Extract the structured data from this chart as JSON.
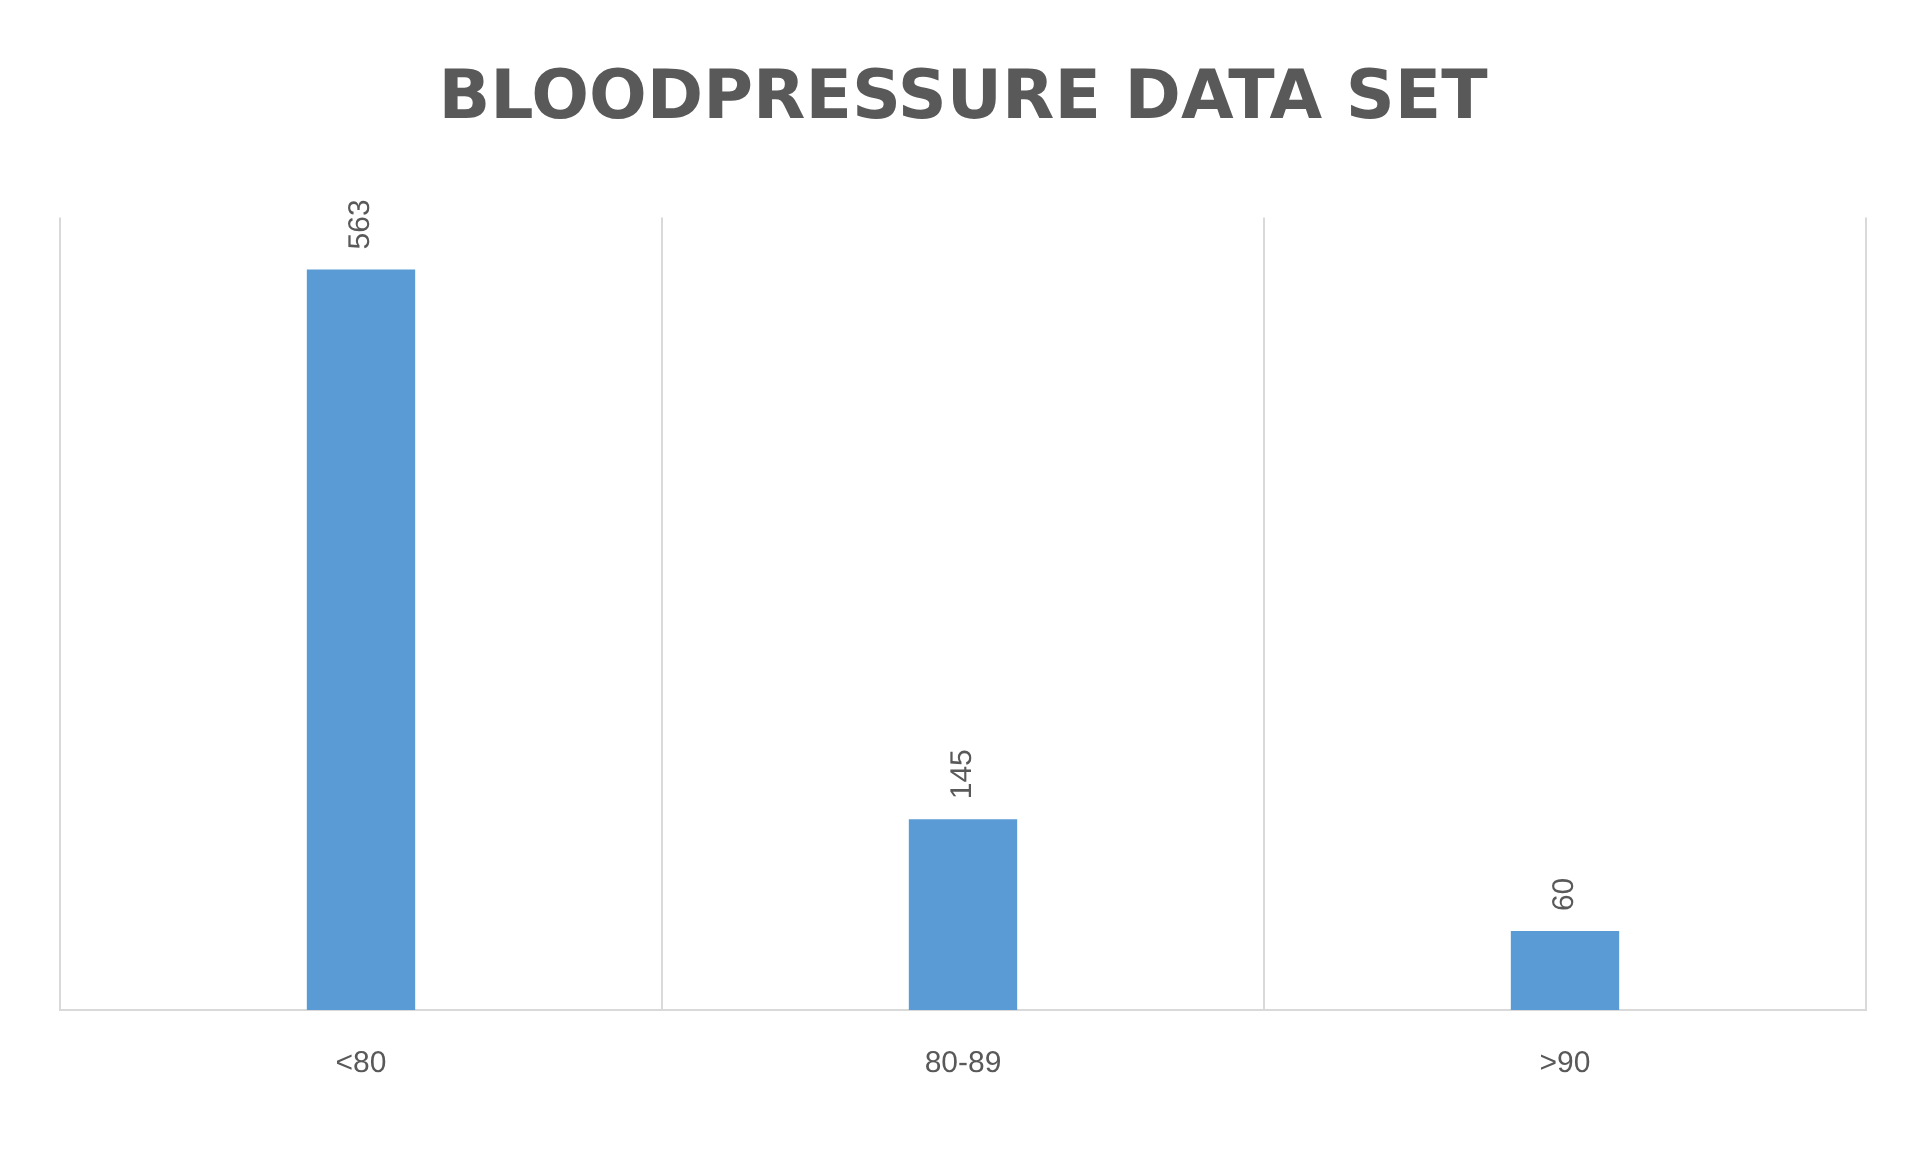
{
  "chart_data": {
    "type": "bar",
    "title": "BLOODPRESSURE DATA SET",
    "categories": [
      "<80",
      "80-89",
      ">90"
    ],
    "values": [
      563,
      145,
      60
    ],
    "color": "#5b9bd5",
    "data_labels": true,
    "grid": "x",
    "legend": false
  }
}
